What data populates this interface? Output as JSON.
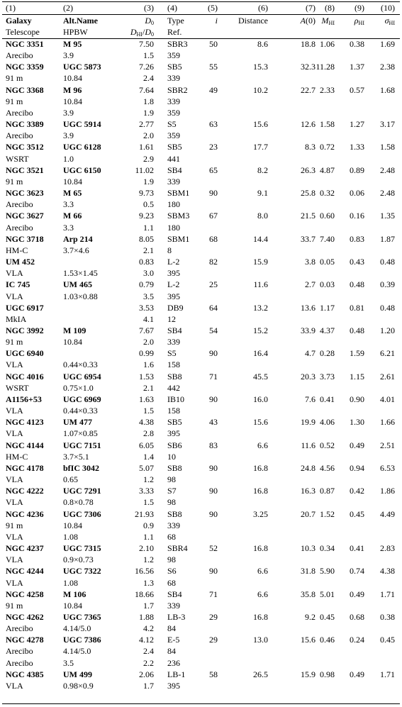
{
  "column_numbers": [
    "(1)",
    "(2)",
    "(3)",
    "(4)",
    "(5)",
    "(6)",
    "(7)",
    "(8)",
    "(9)",
    "(10)"
  ],
  "header": [
    [
      "Galaxy",
      "Alt.Name",
      [
        {
          "text": "D",
          "italic": true
        },
        {
          "text": "0",
          "sub": true
        }
      ],
      "Type",
      [
        {
          "text": "i",
          "italic": true
        }
      ],
      "Distance",
      [
        {
          "text": "A",
          "italic": true
        },
        {
          "text": "(0)"
        }
      ],
      [
        {
          "text": "M",
          "italic": true
        },
        {
          "text": "HI",
          "sub": true
        }
      ],
      [
        {
          "text": "ρ",
          "italic": true
        },
        {
          "text": "HI",
          "sub": true
        }
      ],
      [
        {
          "text": "σ",
          "italic": true
        },
        {
          "text": "HI",
          "sub": true
        }
      ]
    ],
    [
      "Telescope",
      "HPBW",
      [
        {
          "text": "D",
          "italic": true
        },
        {
          "text": "HI",
          "sub": true
        },
        {
          "text": "/"
        },
        {
          "text": "D",
          "italic": true
        },
        {
          "text": "0",
          "sub": true
        }
      ],
      "Ref."
    ]
  ],
  "rows": [
    {
      "main": [
        "NGC 3351",
        "M 95",
        "7.50",
        "SBR3",
        "50",
        "8.6",
        "18.8",
        "1.06",
        "0.38",
        "1.69"
      ],
      "sub": [
        [
          "Arecibo",
          "3.9",
          "1.5",
          "359"
        ]
      ]
    },
    {
      "main": [
        "NGC 3359",
        "UGC 5873",
        "7.26",
        "SB5",
        "55",
        "15.3",
        "32.3",
        "11.28",
        "1.37",
        "2.38"
      ],
      "sub": [
        [
          "91 m",
          "10.84",
          "2.4",
          "339"
        ]
      ]
    },
    {
      "main": [
        "NGC 3368",
        "M 96",
        "7.64",
        "SBR2",
        "49",
        "10.2",
        "22.7",
        "2.33",
        "0.57",
        "1.68"
      ],
      "sub": [
        [
          "91 m",
          "10.84",
          "1.8",
          "339"
        ],
        [
          "Arecibo",
          "3.9",
          "1.9",
          "359"
        ]
      ]
    },
    {
      "main": [
        "NGC 3389",
        "UGC 5914",
        "2.77",
        "S5",
        "63",
        "15.6",
        "12.6",
        "1.58",
        "1.27",
        "3.17"
      ],
      "sub": [
        [
          "Arecibo",
          "3.9",
          "2.0",
          "359"
        ]
      ]
    },
    {
      "main": [
        "NGC 3512",
        "UGC 6128",
        "1.61",
        "SB5",
        "23",
        "17.7",
        "8.3",
        "0.72",
        "1.33",
        "1.58"
      ],
      "sub": [
        [
          "WSRT",
          "1.0",
          "2.9",
          "441"
        ]
      ]
    },
    {
      "main": [
        "NGC 3521",
        "UGC 6150",
        "11.02",
        "SB4",
        "65",
        "8.2",
        "26.3",
        "4.87",
        "0.89",
        "2.48"
      ],
      "sub": [
        [
          "91 m",
          "10.84",
          "1.9",
          "339"
        ]
      ]
    },
    {
      "main": [
        "NGC 3623",
        "M 65",
        "9.73",
        "SBM1",
        "90",
        "9.1",
        "25.8",
        "0.32",
        "0.06",
        "2.48"
      ],
      "sub": [
        [
          "Arecibo",
          "3.3",
          "0.5",
          "180"
        ]
      ]
    },
    {
      "main": [
        "NGC 3627",
        "M 66",
        "9.23",
        "SBM3",
        "67",
        "8.0",
        "21.5",
        "0.60",
        "0.16",
        "1.35"
      ],
      "sub": [
        [
          "Arecibo",
          "3.3",
          "1.1",
          "180"
        ]
      ]
    },
    {
      "main": [
        "NGC 3718",
        "Arp 214",
        "8.05",
        "SBM1",
        "68",
        "14.4",
        "33.7",
        "7.40",
        "0.83",
        "1.87"
      ],
      "sub": [
        [
          "HM-C",
          "3.7×4.6",
          "2.1",
          "8"
        ]
      ]
    },
    {
      "main": [
        "UM 452",
        null,
        "0.83",
        "L-2",
        "82",
        "15.9",
        "3.8",
        "0.05",
        "0.43",
        "0.48"
      ],
      "sub": [
        [
          "VLA",
          "1.53×1.45",
          "3.0",
          "395"
        ]
      ]
    },
    {
      "main": [
        "IC 745",
        "UM 465",
        "0.79",
        "L-2",
        "25",
        "11.6",
        "2.7",
        "0.03",
        "0.48",
        "0.39"
      ],
      "sub": [
        [
          "VLA",
          "1.03×0.88",
          "3.5",
          "395"
        ]
      ]
    },
    {
      "main": [
        "UGC 6917",
        null,
        "3.53",
        "DB9",
        "64",
        "13.2",
        "13.6",
        "1.17",
        "0.81",
        "0.48"
      ],
      "sub": [
        [
          "MkIA",
          null,
          "4.1",
          "12"
        ]
      ]
    },
    {
      "main": [
        "NGC 3992",
        "M 109",
        "7.67",
        "SB4",
        "54",
        "15.2",
        "33.9",
        "4.37",
        "0.48",
        "1.20"
      ],
      "sub": [
        [
          "91 m",
          "10.84",
          "2.0",
          "339"
        ]
      ]
    },
    {
      "main": [
        "UGC 6940",
        null,
        "0.99",
        "S5",
        "90",
        "16.4",
        "4.7",
        "0.28",
        "1.59",
        "6.21"
      ],
      "sub": [
        [
          "VLA",
          "0.44×0.33",
          "1.6",
          "158"
        ]
      ]
    },
    {
      "main": [
        "NGC 4016",
        "UGC 6954",
        "1.53",
        "SB8",
        "71",
        "45.5",
        "20.3",
        "3.73",
        "1.15",
        "2.61"
      ],
      "sub": [
        [
          "WSRT",
          "0.75×1.0",
          "2.1",
          "442"
        ]
      ]
    },
    {
      "main": [
        "A1156+53",
        "UGC 6969",
        "1.63",
        "IB10",
        "90",
        "16.0",
        "7.6",
        "0.41",
        "0.90",
        "4.01"
      ],
      "sub": [
        [
          "VLA",
          "0.44×0.33",
          "1.5",
          "158"
        ]
      ]
    },
    {
      "main": [
        "NGC 4123",
        "UM 477",
        "4.38",
        "SB5",
        "43",
        "15.6",
        "19.9",
        "4.06",
        "1.30",
        "1.66"
      ],
      "sub": [
        [
          "VLA",
          "1.07×0.85",
          "2.8",
          "395"
        ]
      ]
    },
    {
      "main": [
        "NGC 4144",
        "UGC 7151",
        "6.05",
        "SB6",
        "83",
        "6.6",
        "11.6",
        "0.52",
        "0.49",
        "2.51"
      ],
      "sub": [
        [
          "HM-C",
          "3.7×5.1",
          "1.4",
          "10"
        ]
      ]
    },
    {
      "main": [
        "NGC 4178",
        "bfIC 3042",
        "5.07",
        "SB8",
        "90",
        "16.8",
        "24.8",
        "4.56",
        "0.94",
        "6.53"
      ],
      "sub": [
        [
          "VLA",
          "0.65",
          "1.2",
          "98"
        ]
      ]
    },
    {
      "main": [
        "NGC 4222",
        "UGC 7291",
        "3.33",
        "S7",
        "90",
        "16.8",
        "16.3",
        "0.87",
        "0.42",
        "1.86"
      ],
      "sub": [
        [
          "VLA",
          "0.8×0.78",
          "1.5",
          "98"
        ]
      ]
    },
    {
      "main": [
        "NGC 4236",
        "UGC 7306",
        "21.93",
        "SB8",
        "90",
        "3.25",
        "20.7",
        "1.52",
        "0.45",
        "4.49"
      ],
      "sub": [
        [
          "91 m",
          "10.84",
          "0.9",
          "339"
        ],
        [
          "VLA",
          "1.08",
          "1.1",
          "68"
        ]
      ]
    },
    {
      "main": [
        "NGC 4237",
        "UGC 7315",
        "2.10",
        "SBR4",
        "52",
        "16.8",
        "10.3",
        "0.34",
        "0.41",
        "2.83"
      ],
      "sub": [
        [
          "VLA",
          "0.9×0.73",
          "1.2",
          "98"
        ]
      ]
    },
    {
      "main": [
        "NGC 4244",
        "UGC 7322",
        "16.56",
        "S6",
        "90",
        "6.6",
        "31.8",
        "5.90",
        "0.74",
        "4.38"
      ],
      "sub": [
        [
          "VLA",
          "1.08",
          "1.3",
          "68"
        ]
      ]
    },
    {
      "main": [
        "NGC 4258",
        "M 106",
        "18.66",
        "SB4",
        "71",
        "6.6",
        "35.8",
        "5.01",
        "0.49",
        "1.71"
      ],
      "sub": [
        [
          "91 m",
          "10.84",
          "1.7",
          "339"
        ]
      ]
    },
    {
      "main": [
        "NGC 4262",
        "UGC 7365",
        "1.88",
        "LB-3",
        "29",
        "16.8",
        "9.2",
        "0.45",
        "0.68",
        "0.38"
      ],
      "sub": [
        [
          "Arecibo",
          "4.14/5.0",
          "4.2",
          "84"
        ]
      ]
    },
    {
      "main": [
        "NGC 4278",
        "UGC 7386",
        "4.12",
        "E-5",
        "29",
        "13.0",
        "15.6",
        "0.46",
        "0.24",
        "0.45"
      ],
      "sub": [
        [
          "Arecibo",
          "4.14/5.0",
          "2.4",
          "84"
        ],
        [
          "Arecibo",
          "3.5",
          "2.2",
          "236"
        ]
      ]
    },
    {
      "main": [
        "NGC 4385",
        "UM 499",
        "2.06",
        "LB-1",
        "58",
        "26.5",
        "15.9",
        "0.98",
        "0.49",
        "1.71"
      ],
      "sub": [
        [
          "VLA",
          "0.98×0.9",
          "1.7",
          "395"
        ]
      ]
    }
  ]
}
